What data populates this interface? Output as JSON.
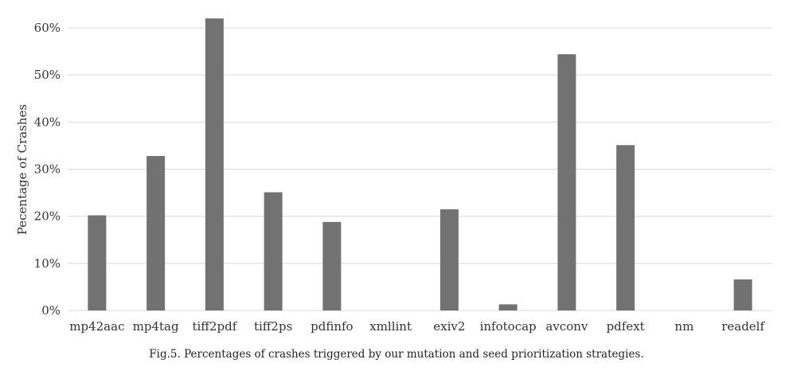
{
  "chart_data": {
    "type": "bar",
    "categories": [
      "mp42aac",
      "mp4tag",
      "tiff2pdf",
      "tiff2ps",
      "pdfinfo",
      "xmllint",
      "exiv2",
      "infotocap",
      "avconv",
      "pdfext",
      "nm",
      "readelf"
    ],
    "values": [
      20.2,
      32.8,
      62.0,
      25.1,
      18.8,
      0,
      21.5,
      1.3,
      54.4,
      35.1,
      0,
      6.6
    ],
    "ylabel": "Pecentage of Crashes",
    "xlabel": "",
    "ylim": [
      0,
      60
    ],
    "yticks": [
      "0%",
      "10%",
      "20%",
      "30%",
      "40%",
      "50%",
      "60%"
    ],
    "grid": true,
    "bar_color": "#737272",
    "grid_color": "#d9d9d9"
  },
  "caption": "Fig.5.  Percentages of crashes triggered by our mutation and seed prioritization strategies."
}
